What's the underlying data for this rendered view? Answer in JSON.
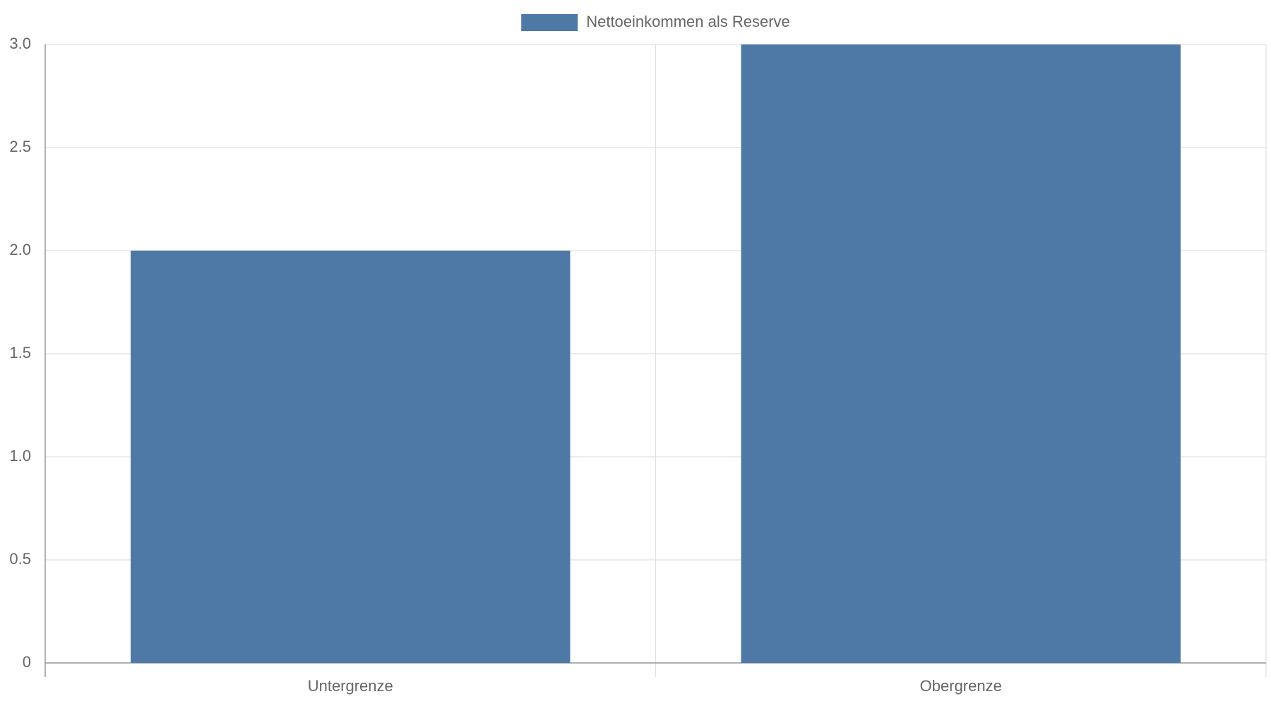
{
  "chart_data": {
    "type": "bar",
    "categories": [
      "Untergrenze",
      "Obergrenze"
    ],
    "series": [
      {
        "name": "Nettoeinkommen als Reserve",
        "color": "#4e79a7",
        "values": [
          2,
          3
        ]
      }
    ],
    "ylim": [
      0,
      3
    ],
    "yticks": [
      0,
      0.5,
      {
        "value": 1,
        "label": "1.0"
      },
      1.5,
      {
        "value": 2,
        "label": "2.0"
      },
      2.5,
      {
        "value": 3,
        "label": "3.0"
      }
    ],
    "grid": true,
    "legend": "top"
  }
}
